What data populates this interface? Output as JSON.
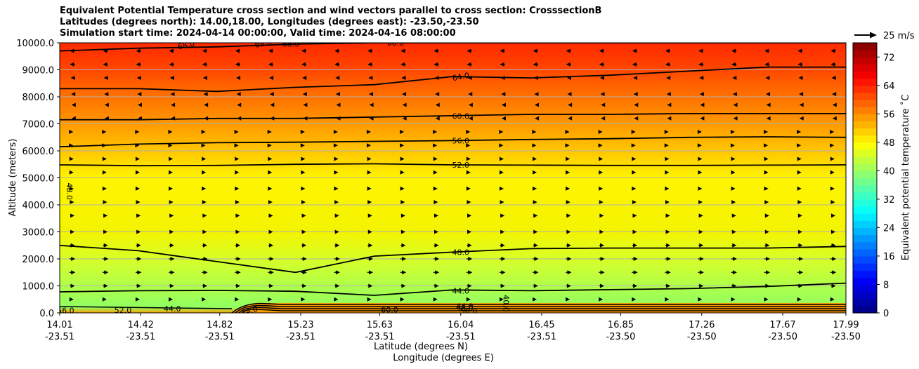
{
  "chart_data": {
    "type": "contour",
    "title_lines": [
      "Equivalent Potential Temperature cross section and wind vectors parallel to cross section: CrosssectionB",
      "Latitudes (degrees north): 14.00,18.00, Longitudes (degrees east): -23.50,-23.50",
      "Simulation start time: 2024-04-14 00:00:00, Valid time: 2024-04-16 08:00:00"
    ],
    "xlabel": "Latitude (degrees N)",
    "xlabel2": "Longitude (degrees E)",
    "ylabel": "Altitude (meters)",
    "ylim": [
      0,
      10000
    ],
    "yticks": [
      "0.0",
      "1000.0",
      "2000.0",
      "3000.0",
      "4000.0",
      "5000.0",
      "6000.0",
      "7000.0",
      "8000.0",
      "9000.0",
      "10000.0"
    ],
    "xticks": [
      {
        "lat": "14.01",
        "lon": "-23.51"
      },
      {
        "lat": "14.42",
        "lon": "-23.51"
      },
      {
        "lat": "14.82",
        "lon": "-23.51"
      },
      {
        "lat": "15.23",
        "lon": "-23.51"
      },
      {
        "lat": "15.63",
        "lon": "-23.51"
      },
      {
        "lat": "16.04",
        "lon": "-23.51"
      },
      {
        "lat": "16.45",
        "lon": "-23.51"
      },
      {
        "lat": "16.85",
        "lon": "-23.50"
      },
      {
        "lat": "17.26",
        "lon": "-23.50"
      },
      {
        "lat": "17.67",
        "lon": "-23.50"
      },
      {
        "lat": "17.99",
        "lon": "-23.50"
      }
    ],
    "grid": "horizontal",
    "colorbar": {
      "label": "Equivalent potential temperature $^\\circ$C",
      "label_display": "Equivalent potential temperature ˚C",
      "min": 0,
      "max": 76,
      "step": 2,
      "tick_labels": [
        "0",
        "8",
        "16",
        "24",
        "32",
        "40",
        "48",
        "56",
        "64",
        "72"
      ],
      "colormap": "jet"
    },
    "quiver_key": {
      "label": "25 m/s",
      "value": 25
    },
    "contours": [
      {
        "level": "44.0",
        "altitude": [
          780,
          820,
          830,
          800,
          650,
          850,
          820,
          860,
          900,
          980,
          1100
        ]
      },
      {
        "level": "48.0",
        "altitude": [
          2500,
          2300,
          1900,
          1500,
          2100,
          2250,
          2380,
          2400,
          2400,
          2400,
          2460
        ]
      },
      {
        "level": "52.0",
        "altitude": [
          5480,
          5450,
          5460,
          5500,
          5520,
          5480,
          5470,
          5460,
          5460,
          5470,
          5480
        ]
      },
      {
        "level": "56.0",
        "altitude": [
          6150,
          6250,
          6300,
          6320,
          6350,
          6380,
          6420,
          6450,
          6500,
          6520,
          6500
        ]
      },
      {
        "level": "60.0",
        "altitude": [
          7150,
          7150,
          7200,
          7200,
          7250,
          7300,
          7350,
          7350,
          7380,
          7380,
          7380
        ]
      },
      {
        "level": "64.0",
        "altitude": [
          8300,
          8300,
          8200,
          8350,
          8450,
          8750,
          8700,
          8800,
          8950,
          9100,
          9100
        ]
      },
      {
        "level": "68.0",
        "altitude": [
          9700,
          9800,
          9850,
          9950,
          10000,
          10000,
          10000,
          10000,
          10000,
          10000,
          10000
        ]
      }
    ],
    "wind_u_by_altitude": [
      {
        "altitude": 9700,
        "u": -6
      },
      {
        "altitude": 9200,
        "u": -6
      },
      {
        "altitude": 8700,
        "u": -4
      },
      {
        "altitude": 8100,
        "u": -3
      },
      {
        "altitude": 7700,
        "u": -2
      },
      {
        "altitude": 7200,
        "u": -2
      },
      {
        "altitude": 6700,
        "u": 2
      },
      {
        "altitude": 6200,
        "u": 2
      },
      {
        "altitude": 5700,
        "u": 3
      },
      {
        "altitude": 5200,
        "u": 3
      },
      {
        "altitude": 4600,
        "u": 3
      },
      {
        "altitude": 4100,
        "u": 4
      },
      {
        "altitude": 3600,
        "u": 5
      },
      {
        "altitude": 3000,
        "u": 5
      },
      {
        "altitude": 2500,
        "u": 6
      },
      {
        "altitude": 2000,
        "u": 7
      },
      {
        "altitude": 1500,
        "u": 7
      },
      {
        "altitude": 1000,
        "u": 6
      },
      {
        "altitude": 500,
        "u": 3
      }
    ],
    "contour_labels": [
      {
        "text": "68.0",
        "x_lat": 14.65,
        "altitude": 9920,
        "rot": -12
      },
      {
        "text": "68.0",
        "x_lat": 15.04,
        "altitude": 9980,
        "rot": -10
      },
      {
        "text": "68.0",
        "x_lat": 15.18,
        "altitude": 9960,
        "rot": 0
      },
      {
        "text": "68.0",
        "x_lat": 15.71,
        "altitude": 10000,
        "rot": 0
      },
      {
        "text": "64.0",
        "x_lat": 16.04,
        "altitude": 8750,
        "rot": -10
      },
      {
        "text": "60.0",
        "x_lat": 16.04,
        "altitude": 7280,
        "rot": 0
      },
      {
        "text": "56.0",
        "x_lat": 16.04,
        "altitude": 6380,
        "rot": 0
      },
      {
        "text": "52.0",
        "x_lat": 16.04,
        "altitude": 5480,
        "rot": 0
      },
      {
        "text": "48.0",
        "x_lat": 14.06,
        "altitude": 4500,
        "rot": 90
      },
      {
        "text": "48.0",
        "x_lat": 16.04,
        "altitude": 2250,
        "rot": 0
      },
      {
        "text": "44.0",
        "x_lat": 16.04,
        "altitude": 820,
        "rot": 0
      },
      {
        "text": "40.0",
        "x_lat": 16.27,
        "altitude": 350,
        "rot": 90
      },
      {
        "text": "56.0",
        "x_lat": 14.04,
        "altitude": 90,
        "rot": 0
      },
      {
        "text": "52.0",
        "x_lat": 14.33,
        "altitude": 100,
        "rot": 0
      },
      {
        "text": "44.0",
        "x_lat": 14.58,
        "altitude": 160,
        "rot": 0
      },
      {
        "text": "44.0",
        "x_lat": 14.97,
        "altitude": 80,
        "rot": -15
      },
      {
        "text": "44.0",
        "x_lat": 16.06,
        "altitude": 250,
        "rot": 0
      },
      {
        "text": "48.0",
        "x_lat": 16.06,
        "altitude": 180,
        "rot": 0
      },
      {
        "text": "60.0",
        "x_lat": 15.68,
        "altitude": 120,
        "rot": 0
      },
      {
        "text": "56.0",
        "x_lat": 16.08,
        "altitude": 80,
        "rot": 0
      }
    ]
  }
}
